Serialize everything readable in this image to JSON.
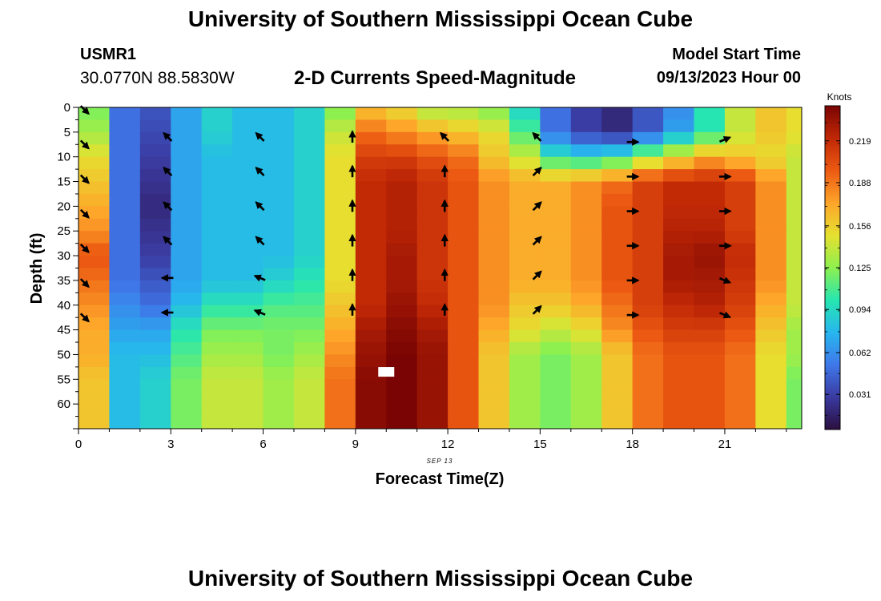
{
  "header": {
    "title": "University of Southern Mississippi Ocean Cube",
    "station_id": "USMR1",
    "station_coords": "30.0770N  88.5830W",
    "subtitle": "2-D Currents Speed-Magnitude",
    "model_start_label": "Model Start Time",
    "model_start_value": "09/13/2023 Hour 00"
  },
  "footer": {
    "title": "University of Southern Mississippi Ocean Cube"
  },
  "chart_data": {
    "type": "heatmap",
    "title": "2-D Currents Speed-Magnitude",
    "xlabel": "Forecast Time(Z)",
    "ylabel": "Depth (ft)",
    "date_label": "SEP 13",
    "x_range": [
      0,
      23.5
    ],
    "y_range": [
      0,
      65
    ],
    "x_ticks": [
      0,
      3,
      6,
      9,
      12,
      15,
      18,
      21
    ],
    "y_ticks": [
      0,
      5,
      10,
      15,
      20,
      25,
      30,
      35,
      40,
      45,
      50,
      55,
      60
    ],
    "colorbar": {
      "label": "Knots",
      "range": [
        0.005,
        0.245
      ],
      "ticks": [
        0.031,
        0.062,
        0.094,
        0.125,
        0.156,
        0.188,
        0.219
      ],
      "colors": [
        "#2b0f3f",
        "#3a3aa0",
        "#3f78ea",
        "#27b6ee",
        "#27e6b0",
        "#8ef04f",
        "#e6e030",
        "#fda52a",
        "#ec5a12",
        "#c02806",
        "#7a0403"
      ]
    },
    "hour_columns": [
      0,
      1,
      2,
      3,
      4,
      5,
      6,
      7,
      8,
      9,
      10,
      11,
      12,
      13,
      14,
      15,
      16,
      17,
      18,
      19,
      20,
      21,
      22,
      23
    ],
    "depth_rows": [
      0,
      5,
      10,
      15,
      20,
      25,
      30,
      35,
      40,
      45,
      50,
      55,
      60
    ],
    "speed": [
      [
        0.12,
        0.05,
        0.04,
        0.07,
        0.09,
        0.08,
        0.08,
        0.09,
        0.12,
        0.16,
        0.15,
        0.13,
        0.13,
        0.12,
        0.09,
        0.05,
        0.03,
        0.02,
        0.04,
        0.06,
        0.1,
        0.14,
        0.16,
        0.15
      ],
      [
        0.13,
        0.05,
        0.035,
        0.07,
        0.09,
        0.08,
        0.08,
        0.09,
        0.14,
        0.19,
        0.18,
        0.17,
        0.16,
        0.15,
        0.11,
        0.05,
        0.03,
        0.02,
        0.04,
        0.07,
        0.1,
        0.14,
        0.16,
        0.15
      ],
      [
        0.15,
        0.05,
        0.03,
        0.07,
        0.08,
        0.08,
        0.08,
        0.09,
        0.15,
        0.21,
        0.21,
        0.2,
        0.19,
        0.16,
        0.14,
        0.1,
        0.09,
        0.1,
        0.13,
        0.15,
        0.17,
        0.16,
        0.15,
        0.14
      ],
      [
        0.16,
        0.05,
        0.025,
        0.07,
        0.08,
        0.08,
        0.08,
        0.09,
        0.15,
        0.22,
        0.225,
        0.215,
        0.2,
        0.18,
        0.17,
        0.17,
        0.18,
        0.19,
        0.21,
        0.22,
        0.22,
        0.21,
        0.18,
        0.14
      ],
      [
        0.17,
        0.05,
        0.02,
        0.07,
        0.08,
        0.08,
        0.08,
        0.09,
        0.15,
        0.22,
        0.225,
        0.215,
        0.2,
        0.18,
        0.17,
        0.17,
        0.18,
        0.2,
        0.21,
        0.22,
        0.22,
        0.21,
        0.18,
        0.14
      ],
      [
        0.18,
        0.05,
        0.025,
        0.07,
        0.08,
        0.08,
        0.08,
        0.09,
        0.15,
        0.22,
        0.225,
        0.215,
        0.2,
        0.18,
        0.17,
        0.17,
        0.18,
        0.2,
        0.21,
        0.225,
        0.225,
        0.21,
        0.18,
        0.14
      ],
      [
        0.2,
        0.05,
        0.03,
        0.07,
        0.08,
        0.08,
        0.08,
        0.09,
        0.15,
        0.22,
        0.23,
        0.215,
        0.2,
        0.18,
        0.17,
        0.17,
        0.18,
        0.2,
        0.21,
        0.23,
        0.235,
        0.22,
        0.18,
        0.14
      ],
      [
        0.19,
        0.05,
        0.04,
        0.07,
        0.08,
        0.08,
        0.09,
        0.1,
        0.15,
        0.22,
        0.23,
        0.215,
        0.2,
        0.18,
        0.17,
        0.17,
        0.18,
        0.2,
        0.21,
        0.23,
        0.23,
        0.215,
        0.18,
        0.14
      ],
      [
        0.18,
        0.06,
        0.05,
        0.08,
        0.1,
        0.1,
        0.11,
        0.11,
        0.16,
        0.22,
        0.235,
        0.22,
        0.2,
        0.18,
        0.16,
        0.16,
        0.17,
        0.19,
        0.21,
        0.22,
        0.225,
        0.21,
        0.17,
        0.14
      ],
      [
        0.17,
        0.07,
        0.07,
        0.1,
        0.12,
        0.12,
        0.12,
        0.12,
        0.17,
        0.23,
        0.24,
        0.23,
        0.2,
        0.17,
        0.15,
        0.14,
        0.15,
        0.18,
        0.2,
        0.21,
        0.21,
        0.2,
        0.16,
        0.13
      ],
      [
        0.17,
        0.08,
        0.08,
        0.11,
        0.13,
        0.13,
        0.12,
        0.13,
        0.18,
        0.235,
        0.245,
        0.235,
        0.2,
        0.16,
        0.13,
        0.12,
        0.13,
        0.16,
        0.19,
        0.2,
        0.2,
        0.19,
        0.15,
        0.13
      ],
      [
        0.16,
        0.08,
        0.09,
        0.12,
        0.14,
        0.14,
        0.13,
        0.14,
        0.19,
        0.24,
        0.245,
        0.235,
        0.2,
        0.16,
        0.13,
        0.12,
        0.13,
        0.16,
        0.19,
        0.2,
        0.2,
        0.19,
        0.15,
        0.12
      ],
      [
        0.16,
        0.08,
        0.09,
        0.12,
        0.14,
        0.14,
        0.13,
        0.14,
        0.19,
        0.24,
        0.245,
        0.235,
        0.2,
        0.16,
        0.13,
        0.12,
        0.13,
        0.16,
        0.19,
        0.2,
        0.2,
        0.19,
        0.15,
        0.12
      ]
    ],
    "vectors": [
      {
        "hour": 0.2,
        "depth": 0.5,
        "dir": "se"
      },
      {
        "hour": 0.2,
        "depth": 7.5,
        "dir": "se"
      },
      {
        "hour": 0.2,
        "depth": 14.5,
        "dir": "se"
      },
      {
        "hour": 0.2,
        "depth": 21.5,
        "dir": "se"
      },
      {
        "hour": 0.2,
        "depth": 28.5,
        "dir": "se"
      },
      {
        "hour": 0.2,
        "depth": 35.5,
        "dir": "se"
      },
      {
        "hour": 0.2,
        "depth": 42.5,
        "dir": "se"
      },
      {
        "hour": 2.9,
        "depth": 6,
        "dir": "nw"
      },
      {
        "hour": 2.9,
        "depth": 13,
        "dir": "nw"
      },
      {
        "hour": 2.9,
        "depth": 20,
        "dir": "nw"
      },
      {
        "hour": 2.9,
        "depth": 27,
        "dir": "nw"
      },
      {
        "hour": 2.9,
        "depth": 34.5,
        "dir": "w"
      },
      {
        "hour": 2.9,
        "depth": 41.5,
        "dir": "w"
      },
      {
        "hour": 5.9,
        "depth": 6,
        "dir": "nw"
      },
      {
        "hour": 5.9,
        "depth": 13,
        "dir": "nw"
      },
      {
        "hour": 5.9,
        "depth": 20,
        "dir": "nw"
      },
      {
        "hour": 5.9,
        "depth": 27,
        "dir": "nw"
      },
      {
        "hour": 5.9,
        "depth": 34.5,
        "dir": "wnw"
      },
      {
        "hour": 5.9,
        "depth": 41.5,
        "dir": "wnw"
      },
      {
        "hour": 8.9,
        "depth": 6,
        "dir": "n"
      },
      {
        "hour": 8.9,
        "depth": 13,
        "dir": "n"
      },
      {
        "hour": 8.9,
        "depth": 20,
        "dir": "n"
      },
      {
        "hour": 8.9,
        "depth": 27,
        "dir": "n"
      },
      {
        "hour": 8.9,
        "depth": 34,
        "dir": "n"
      },
      {
        "hour": 8.9,
        "depth": 41,
        "dir": "n"
      },
      {
        "hour": 11.9,
        "depth": 6,
        "dir": "nw"
      },
      {
        "hour": 11.9,
        "depth": 13,
        "dir": "n"
      },
      {
        "hour": 11.9,
        "depth": 20,
        "dir": "n"
      },
      {
        "hour": 11.9,
        "depth": 27,
        "dir": "n"
      },
      {
        "hour": 11.9,
        "depth": 34,
        "dir": "n"
      },
      {
        "hour": 11.9,
        "depth": 41,
        "dir": "n"
      },
      {
        "hour": 14.9,
        "depth": 6,
        "dir": "nw"
      },
      {
        "hour": 14.9,
        "depth": 13,
        "dir": "ne"
      },
      {
        "hour": 14.9,
        "depth": 20,
        "dir": "ne"
      },
      {
        "hour": 14.9,
        "depth": 27,
        "dir": "ne"
      },
      {
        "hour": 14.9,
        "depth": 34,
        "dir": "ne"
      },
      {
        "hour": 14.9,
        "depth": 41,
        "dir": "ne"
      },
      {
        "hour": 18.0,
        "depth": 7,
        "dir": "e"
      },
      {
        "hour": 18.0,
        "depth": 14,
        "dir": "e"
      },
      {
        "hour": 18.0,
        "depth": 21,
        "dir": "e"
      },
      {
        "hour": 18.0,
        "depth": 28,
        "dir": "e"
      },
      {
        "hour": 18.0,
        "depth": 35,
        "dir": "e"
      },
      {
        "hour": 18.0,
        "depth": 42,
        "dir": "e"
      },
      {
        "hour": 21.0,
        "depth": 6.5,
        "dir": "ene"
      },
      {
        "hour": 21.0,
        "depth": 14,
        "dir": "e"
      },
      {
        "hour": 21.0,
        "depth": 21,
        "dir": "e"
      },
      {
        "hour": 21.0,
        "depth": 28,
        "dir": "e"
      },
      {
        "hour": 21.0,
        "depth": 35,
        "dir": "ese"
      },
      {
        "hour": 21.0,
        "depth": 42,
        "dir": "ese"
      }
    ],
    "marker": {
      "hour": 10.0,
      "depth": 53.5
    }
  }
}
